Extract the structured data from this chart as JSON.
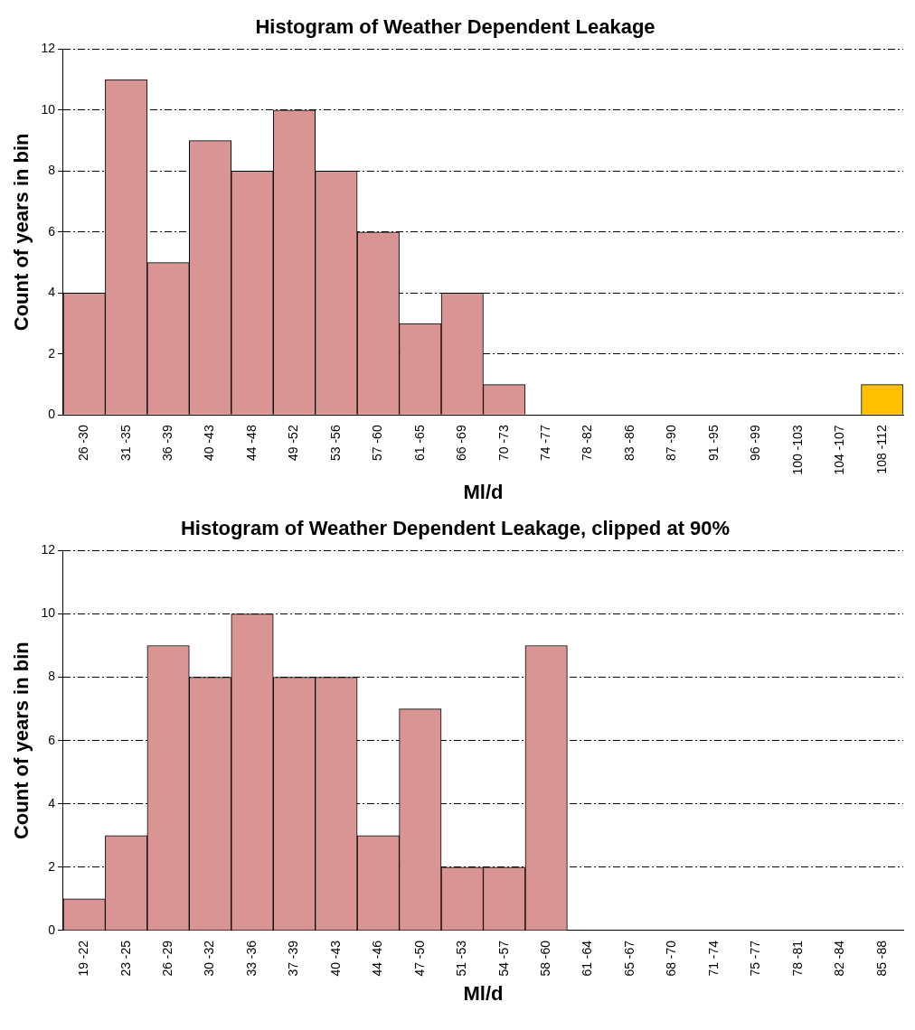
{
  "chart_data": [
    {
      "type": "bar",
      "title": "Histogram of Weather Dependent Leakage",
      "xlabel": "Ml/d",
      "ylabel": "Count of years in bin",
      "categories": [
        "26 -30",
        "31 -35",
        "36 -39",
        "40 -43",
        "44 -48",
        "49 -52",
        "53 -56",
        "57 -60",
        "61 -65",
        "66 -69",
        "70 -73",
        "74 -77",
        "78 -82",
        "83 -86",
        "87 -90",
        "91 -95",
        "96 -99",
        "100 -103",
        "104 -107",
        "108 -112"
      ],
      "values": [
        4,
        11,
        5,
        9,
        8,
        10,
        8,
        6,
        3,
        4,
        1,
        0,
        0,
        0,
        0,
        0,
        0,
        0,
        0,
        1
      ],
      "colors": [
        "#d99594",
        "#d99594",
        "#d99594",
        "#d99594",
        "#d99594",
        "#d99594",
        "#d99594",
        "#d99594",
        "#d99594",
        "#d99594",
        "#d99594",
        "#d99594",
        "#d99594",
        "#d99594",
        "#d99594",
        "#d99594",
        "#d99594",
        "#d99594",
        "#d99594",
        "#ffc000"
      ],
      "ylim": [
        0,
        12
      ],
      "yticks": [
        0,
        2,
        4,
        6,
        8,
        10,
        12
      ],
      "grid": "y",
      "line_style": "dashed"
    },
    {
      "type": "bar",
      "title": "Histogram of Weather Dependent Leakage, clipped at 90%",
      "xlabel": "Ml/d",
      "ylabel": "Count of years in bin",
      "categories": [
        "19 -22",
        "23 -25",
        "26 -29",
        "30 -32",
        "33 -36",
        "37 -39",
        "40 -43",
        "44 -46",
        "47 -50",
        "51 -53",
        "54 -57",
        "58 -60",
        "61 -64",
        "65 -67",
        "68 -70",
        "71 -74",
        "75 -77",
        "78 -81",
        "82 -84",
        "85 -88"
      ],
      "values": [
        1,
        3,
        9,
        8,
        10,
        8,
        8,
        3,
        7,
        2,
        2,
        9,
        0,
        0,
        0,
        0,
        0,
        0,
        0,
        0
      ],
      "color": "#d99594",
      "ylim": [
        0,
        12
      ],
      "yticks": [
        0,
        2,
        4,
        6,
        8,
        10,
        12
      ],
      "grid": "y",
      "line_style": "dashed"
    }
  ]
}
